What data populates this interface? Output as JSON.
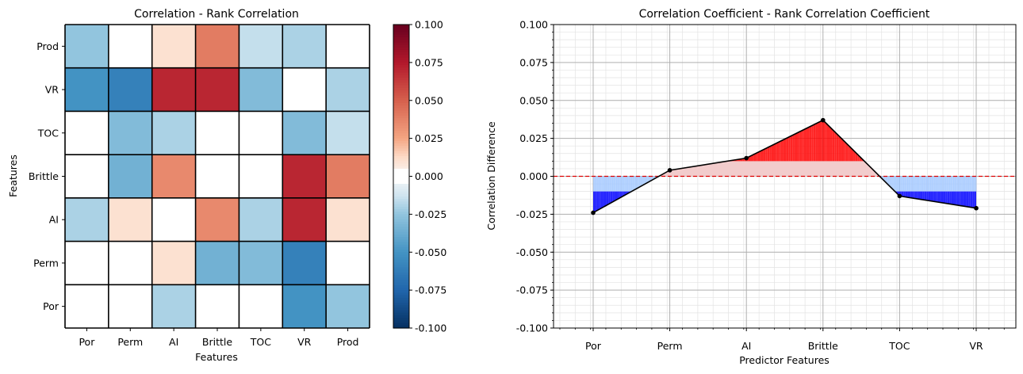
{
  "chart_data": [
    {
      "type": "heatmap",
      "title": "Correlation - Rank Correlation",
      "xlabel": "Features",
      "ylabel": "Features",
      "x_categories": [
        "Por",
        "Perm",
        "AI",
        "Brittle",
        "TOC",
        "VR",
        "Prod"
      ],
      "y_categories": [
        "Prod",
        "VR",
        "TOC",
        "Brittle",
        "AI",
        "Perm",
        "Por"
      ],
      "values": [
        [
          -0.025,
          0.0,
          0.01,
          0.04,
          -0.015,
          -0.02,
          0.0
        ],
        [
          -0.05,
          -0.06,
          0.07,
          0.07,
          -0.03,
          0.0,
          -0.02
        ],
        [
          0.0,
          -0.03,
          -0.02,
          0.0,
          0.0,
          -0.03,
          -0.015
        ],
        [
          0.0,
          -0.035,
          0.035,
          0.0,
          0.0,
          0.07,
          0.04
        ],
        [
          -0.02,
          0.01,
          0.0,
          0.035,
          -0.02,
          0.07,
          0.01
        ],
        [
          0.0,
          0.0,
          0.01,
          -0.035,
          -0.03,
          -0.06,
          0.0
        ],
        [
          0.0,
          0.0,
          -0.02,
          0.0,
          0.0,
          -0.05,
          -0.025
        ]
      ],
      "colorbar": {
        "colormap": "RdBu_r",
        "range": [
          -0.1,
          0.1
        ],
        "ticks": [
          "-0.100",
          "-0.075",
          "-0.050",
          "-0.025",
          "0.000",
          "0.025",
          "0.050",
          "0.075",
          "0.100"
        ]
      }
    },
    {
      "type": "line",
      "title": "Correlation Coefficient - Rank Correlation Coefficient",
      "xlabel": "Predictor Features",
      "ylabel": "Correlation Difference",
      "categories": [
        "Por",
        "Perm",
        "AI",
        "Brittle",
        "TOC",
        "VR"
      ],
      "values": [
        -0.024,
        0.004,
        0.012,
        0.037,
        -0.013,
        -0.021
      ],
      "ylim": [
        -0.1,
        0.1
      ],
      "yticks": [
        "-0.100",
        "-0.075",
        "-0.050",
        "-0.025",
        "0.000",
        "0.025",
        "0.050",
        "0.075",
        "0.100"
      ],
      "reference_line": 0.0,
      "band_threshold": 0.01,
      "grid": true,
      "colors": {
        "line": "#000000",
        "positive_strong": "#ff0000",
        "positive_light": "#f2cccc",
        "negative_strong": "#0000ff",
        "negative_light": "#99c2ff",
        "reference": "#dd0000"
      }
    }
  ]
}
